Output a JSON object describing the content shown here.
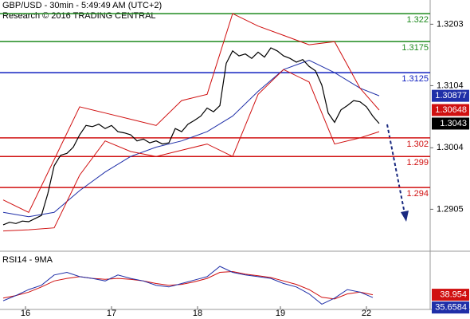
{
  "chart_data": {
    "type": "line",
    "title": "GBP/USD - 30min - 5:49:49 AM (UTC+2)",
    "subtitle": "Research © 2016 TRADING CENTRAL",
    "x": [
      0,
      1,
      2,
      3,
      4,
      5,
      6,
      7,
      8,
      9,
      10,
      11,
      12,
      13,
      14,
      15,
      16,
      17,
      18,
      19,
      20,
      21,
      22,
      23,
      24,
      25,
      26,
      27,
      28,
      29,
      30,
      31,
      32,
      33,
      34,
      35,
      36,
      37,
      38,
      39,
      40,
      41,
      42,
      43,
      44,
      45,
      46,
      47,
      48,
      49,
      50,
      51,
      52,
      53,
      54,
      55,
      56,
      57,
      58,
      59
    ],
    "xlim": [
      -0.5,
      67
    ],
    "xticks": [
      {
        "value": 3.5,
        "label": "16"
      },
      {
        "value": 17,
        "label": "17"
      },
      {
        "value": 30.5,
        "label": "18"
      },
      {
        "value": 43.5,
        "label": "19"
      },
      {
        "value": 57,
        "label": "22"
      }
    ],
    "ylim": [
      1.284,
      1.3242
    ],
    "yticks": [
      1.2905,
      1.3004,
      1.3104,
      1.3203
    ],
    "series": [
      {
        "color": "#000000",
        "box_color": "#000000",
        "values": [
          1.288,
          1.2884,
          1.2882,
          1.2886,
          1.2885,
          1.289,
          1.2895,
          1.293,
          1.2975,
          1.2992,
          1.2995,
          1.3005,
          1.3025,
          1.304,
          1.3038,
          1.3042,
          1.3035,
          1.304,
          1.303,
          1.3028,
          1.3025,
          1.3015,
          1.3018,
          1.3012,
          1.3015,
          1.301,
          1.3012,
          1.3035,
          1.303,
          1.3042,
          1.3048,
          1.3055,
          1.3068,
          1.3062,
          1.3072,
          1.314,
          1.316,
          1.3152,
          1.3155,
          1.3148,
          1.3158,
          1.315,
          1.3165,
          1.316,
          1.3152,
          1.3148,
          1.3142,
          1.3146,
          1.3135,
          1.3128,
          1.3105,
          1.306,
          1.3045,
          1.3065,
          1.3072,
          1.308,
          1.3078,
          1.307,
          1.3055,
          1.3043
        ]
      }
    ],
    "indicator_x": [
      0,
      4,
      8,
      12,
      16,
      20,
      24,
      28,
      32,
      36,
      40,
      44,
      48,
      52,
      56,
      59
    ],
    "indicators": [
      {
        "color": "#1f2fa8",
        "box_color": "#1f2fa8",
        "values": [
          1.29,
          1.2893,
          1.29,
          1.2935,
          1.2965,
          1.299,
          1.3005,
          1.3015,
          1.303,
          1.3055,
          1.3095,
          1.313,
          1.3145,
          1.3125,
          1.31,
          1.30877
        ]
      },
      {
        "color": "#d01010",
        "box_color": "#d01010",
        "values": [
          1.292,
          1.29,
          1.2985,
          1.307,
          1.306,
          1.305,
          1.304,
          1.308,
          1.309,
          1.322,
          1.32,
          1.3185,
          1.317,
          1.3175,
          1.31,
          1.30648
        ]
      },
      {
        "color": "#d01010",
        "values": [
          1.287,
          1.2872,
          1.2875,
          1.296,
          1.3015,
          1.2998,
          1.299,
          1.3,
          1.301,
          1.299,
          1.309,
          1.313,
          1.311,
          1.301,
          1.302,
          1.303
        ]
      }
    ],
    "levels": [
      {
        "value": 1.322,
        "color": "#1e8a1e"
      },
      {
        "value": 1.3175,
        "color": "#1e8a1e"
      },
      {
        "value": 1.3125,
        "color": "#1020c0"
      },
      {
        "value": 1.302,
        "color": "#d01010"
      },
      {
        "value": 1.299,
        "color": "#d01010"
      },
      {
        "value": 1.294,
        "color": "#d01010"
      }
    ],
    "rsi": {
      "label": "RSI14 - 9MA",
      "x": [
        0,
        2,
        4,
        6,
        8,
        10,
        12,
        14,
        16,
        18,
        20,
        22,
        24,
        26,
        28,
        30,
        32,
        34,
        36,
        38,
        40,
        42,
        44,
        46,
        48,
        50,
        52,
        54,
        56,
        58
      ],
      "ylim": [
        20,
        85
      ],
      "series": [
        {
          "color": "#d01010",
          "box_color": "#d01010",
          "values": [
            35,
            38,
            42,
            48,
            55,
            58,
            60,
            58,
            57,
            58,
            57,
            55,
            52,
            50,
            51,
            54,
            58,
            65,
            66,
            63,
            61,
            59,
            55,
            51,
            45,
            36,
            34,
            40,
            42,
            38.954
          ]
        },
        {
          "color": "#1f2fa8",
          "box_color": "#1f2fa8",
          "values": [
            32,
            38,
            45,
            50,
            62,
            65,
            60,
            58,
            55,
            62,
            58,
            55,
            50,
            48,
            52,
            56,
            60,
            72,
            65,
            62,
            60,
            58,
            52,
            48,
            40,
            28,
            35,
            45,
            42,
            35.6584
          ]
        }
      ]
    }
  }
}
